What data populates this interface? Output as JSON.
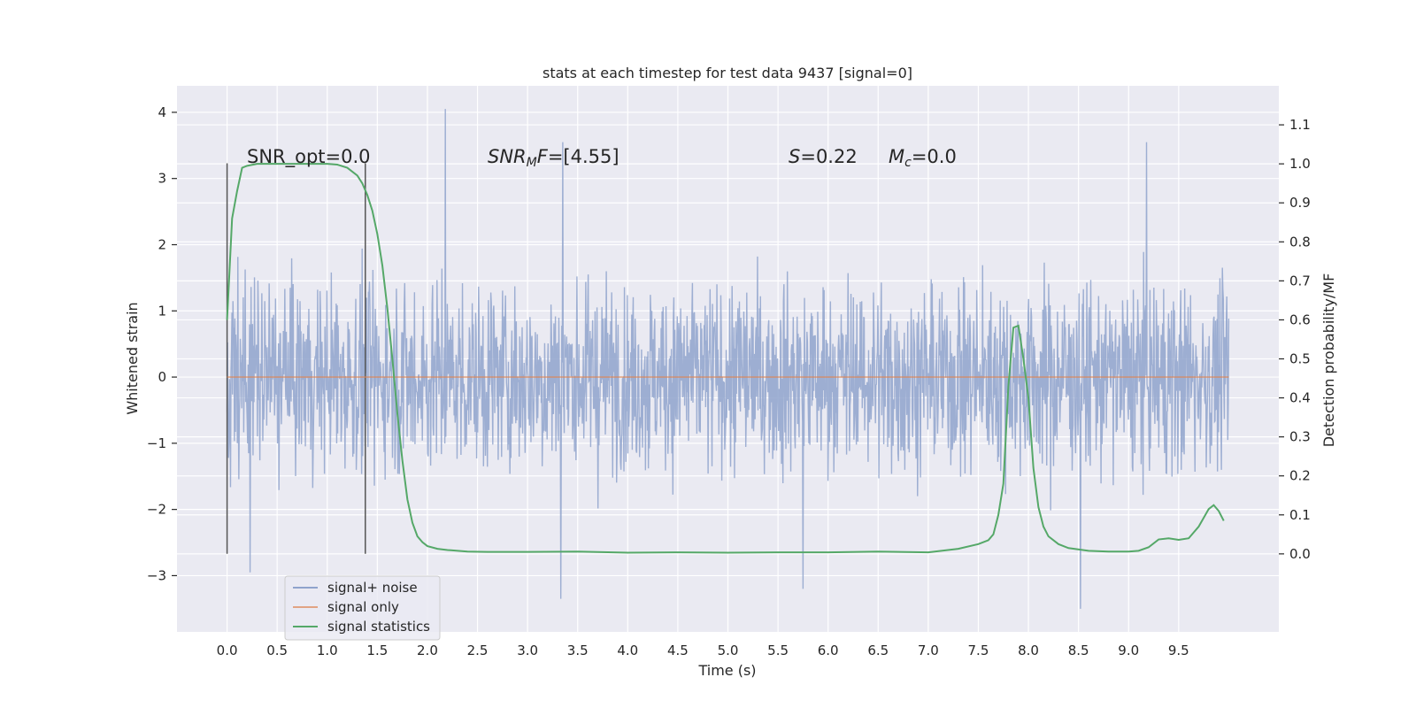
{
  "chart_data": {
    "type": "line",
    "title": "stats at each timestep for test data 9437 [signal=0]",
    "xlabel": "Time (s)",
    "ylabel_left": "Whitened strain",
    "ylabel_right": "Detection probability/MF",
    "xlim": [
      -0.5,
      10.5
    ],
    "ylim_left": [
      -3.85,
      4.4
    ],
    "ylim_right": [
      -0.2,
      1.2
    ],
    "x_ticks": [
      "0.0",
      "0.5",
      "1.0",
      "1.5",
      "2.0",
      "2.5",
      "3.0",
      "3.5",
      "4.0",
      "4.5",
      "5.0",
      "5.5",
      "6.0",
      "6.5",
      "7.0",
      "7.5",
      "8.0",
      "8.5",
      "9.0",
      "9.5"
    ],
    "y_ticks_left": [
      "−3",
      "−2",
      "−1",
      "0",
      "1",
      "2",
      "3",
      "4"
    ],
    "y_ticks_right": [
      "0.0",
      "0.1",
      "0.2",
      "0.3",
      "0.4",
      "0.5",
      "0.6",
      "0.7",
      "0.8",
      "0.9",
      "1.0",
      "1.1"
    ],
    "grid": true,
    "legend_position": "lower-left",
    "colors": {
      "background": "#EAEAF2",
      "grid": "#FFFFFF",
      "noise": "#8FA3CC",
      "signal_only": "#DD8452",
      "statistics": "#55A868",
      "markers": "#555555"
    },
    "annotations": {
      "snr_opt": "SNR_opt=0.0",
      "snr_mf_label": "SNR",
      "snr_mf_sub": "M",
      "snr_mf_tail": "F",
      "snr_mf_value": "=[4.55]",
      "s_label": "S",
      "s_value": "=0.22",
      "mc_label": "M",
      "mc_sub": "c",
      "mc_value": "=0.0"
    },
    "vertical_markers": [
      {
        "x": 0.0,
        "ymin": -2.67,
        "ymax": 3.23
      },
      {
        "x": 1.38,
        "ymin": -2.67,
        "ymax": 3.23
      }
    ],
    "series": [
      {
        "name": "signal+ noise",
        "axis": "left",
        "x_range": [
          0.0,
          10.0
        ],
        "typical_envelope": [
          -1.5,
          1.45
        ],
        "extremes": [
          [
            2.18,
            4.05
          ],
          [
            3.35,
            3.55
          ],
          [
            9.18,
            3.55
          ],
          [
            8.52,
            -3.5
          ],
          [
            3.33,
            -3.35
          ],
          [
            0.23,
            -2.95
          ],
          [
            5.75,
            -3.2
          ]
        ]
      },
      {
        "name": "signal only",
        "axis": "left",
        "x": [
          0.0,
          10.0
        ],
        "y": [
          0.0,
          0.0
        ]
      },
      {
        "name": "signal statistics",
        "axis": "right",
        "x": [
          0.0,
          0.05,
          0.1,
          0.15,
          0.2,
          0.3,
          0.5,
          0.8,
          1.0,
          1.1,
          1.2,
          1.3,
          1.35,
          1.4,
          1.45,
          1.5,
          1.55,
          1.6,
          1.65,
          1.7,
          1.75,
          1.8,
          1.85,
          1.9,
          1.95,
          2.0,
          2.1,
          2.2,
          2.4,
          2.6,
          3.0,
          3.5,
          4.0,
          4.5,
          5.0,
          5.5,
          6.0,
          6.5,
          7.0,
          7.3,
          7.5,
          7.6,
          7.65,
          7.7,
          7.75,
          7.8,
          7.85,
          7.9,
          7.95,
          8.0,
          8.05,
          8.1,
          8.15,
          8.2,
          8.3,
          8.4,
          8.6,
          8.8,
          9.0,
          9.1,
          9.2,
          9.3,
          9.4,
          9.5,
          9.6,
          9.7,
          9.8,
          9.85,
          9.9,
          9.95
        ],
        "y": [
          0.6,
          0.86,
          0.93,
          0.99,
          0.995,
          1.0,
          1.0,
          1.0,
          1.0,
          0.998,
          0.99,
          0.97,
          0.95,
          0.92,
          0.88,
          0.82,
          0.74,
          0.63,
          0.5,
          0.36,
          0.24,
          0.14,
          0.08,
          0.045,
          0.03,
          0.02,
          0.013,
          0.01,
          0.006,
          0.005,
          0.005,
          0.006,
          0.003,
          0.004,
          0.003,
          0.004,
          0.004,
          0.006,
          0.004,
          0.013,
          0.025,
          0.035,
          0.05,
          0.1,
          0.18,
          0.43,
          0.58,
          0.585,
          0.5,
          0.4,
          0.22,
          0.12,
          0.07,
          0.045,
          0.025,
          0.015,
          0.008,
          0.006,
          0.006,
          0.008,
          0.017,
          0.037,
          0.04,
          0.036,
          0.04,
          0.07,
          0.115,
          0.125,
          0.11,
          0.085
        ]
      }
    ]
  },
  "legend": {
    "items": [
      {
        "label": "signal+ noise",
        "color": "#8FA3CC"
      },
      {
        "label": "signal only",
        "color": "#DD8452"
      },
      {
        "label": "signal statistics",
        "color": "#55A868"
      }
    ]
  }
}
